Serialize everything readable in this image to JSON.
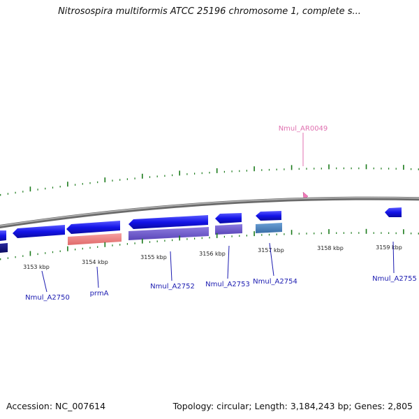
{
  "title": "Nitrosospira multiformis ATCC 25196 chromosome 1, complete s...",
  "footer": {
    "accession": "Accession: NC_007614",
    "summary": "Topology: circular; Length: 3,184,243 bp; Genes: 2,805"
  },
  "scale_labels": [
    "3153 kbp",
    "3154 kbp",
    "3155 kbp",
    "3156 kbp",
    "3157 kbp",
    "3158 kbp",
    "3159 kbp"
  ],
  "gene_labels": {
    "ar0049": "Nmul_AR0049",
    "a2750": "Nmul_A2750",
    "prmA": "prmA",
    "a2752": "Nmul_A2752",
    "a2753": "Nmul_A2753",
    "a2754": "Nmul_A2754",
    "a2755": "Nmul_A2755"
  },
  "colors": {
    "cds": "#1010e0",
    "rna": "#e88080",
    "cds_purple": "#6a55c8",
    "cds_steel": "#4a7fb8",
    "trna": "#f080c0",
    "label_blue": "#1a1ab0",
    "label_pink": "#e070b0",
    "tick_green": "#1a7a1a",
    "backbone": "#808080"
  }
}
